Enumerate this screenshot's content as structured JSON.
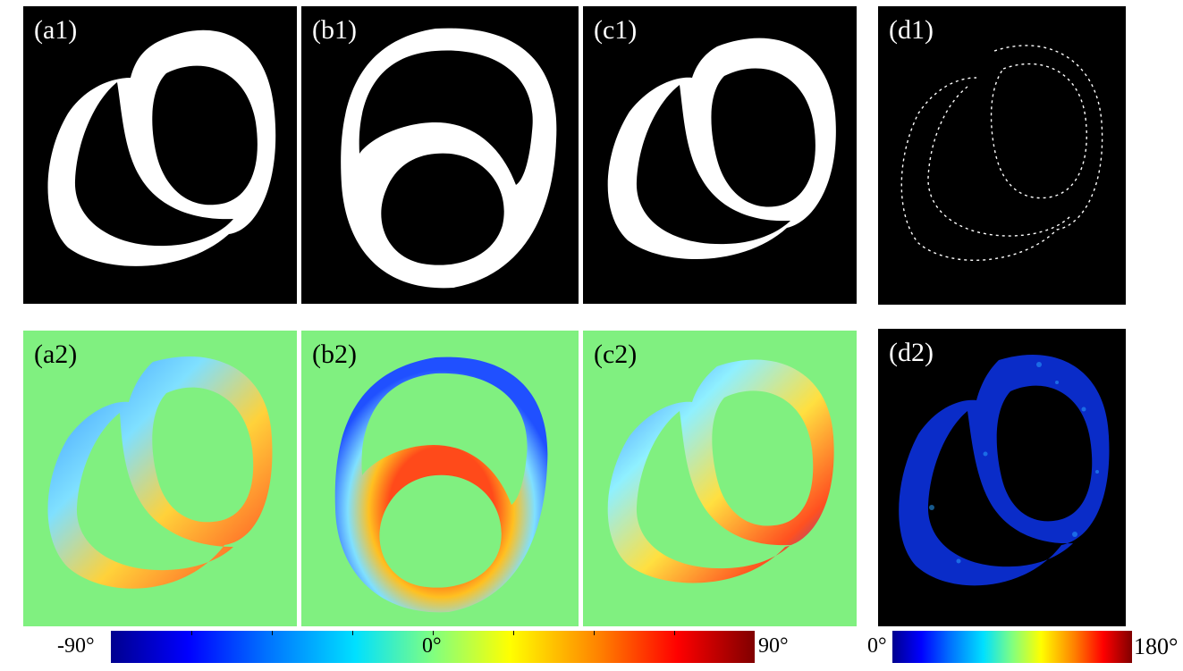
{
  "panels": {
    "a1": {
      "label": "(a1)",
      "background": "#000000"
    },
    "b1": {
      "label": "(b1)",
      "background": "#000000"
    },
    "c1": {
      "label": "(c1)",
      "background": "#000000"
    },
    "d1": {
      "label": "(d1)",
      "background": "#000000"
    },
    "a2": {
      "label": "(a2)",
      "background": "#80f080"
    },
    "b2": {
      "label": "(b2)",
      "background": "#80f080"
    },
    "c2": {
      "label": "(c2)",
      "background": "#80f080"
    },
    "d2": {
      "label": "(d2)",
      "background": "#000000"
    }
  },
  "colorbar_angle": {
    "min_label": "-90°",
    "mid_label": "0°",
    "max_label": "90°",
    "colormap": "jet"
  },
  "colorbar_diff": {
    "min_label": "0°",
    "max_label": "180°",
    "colormap": "jet"
  }
}
